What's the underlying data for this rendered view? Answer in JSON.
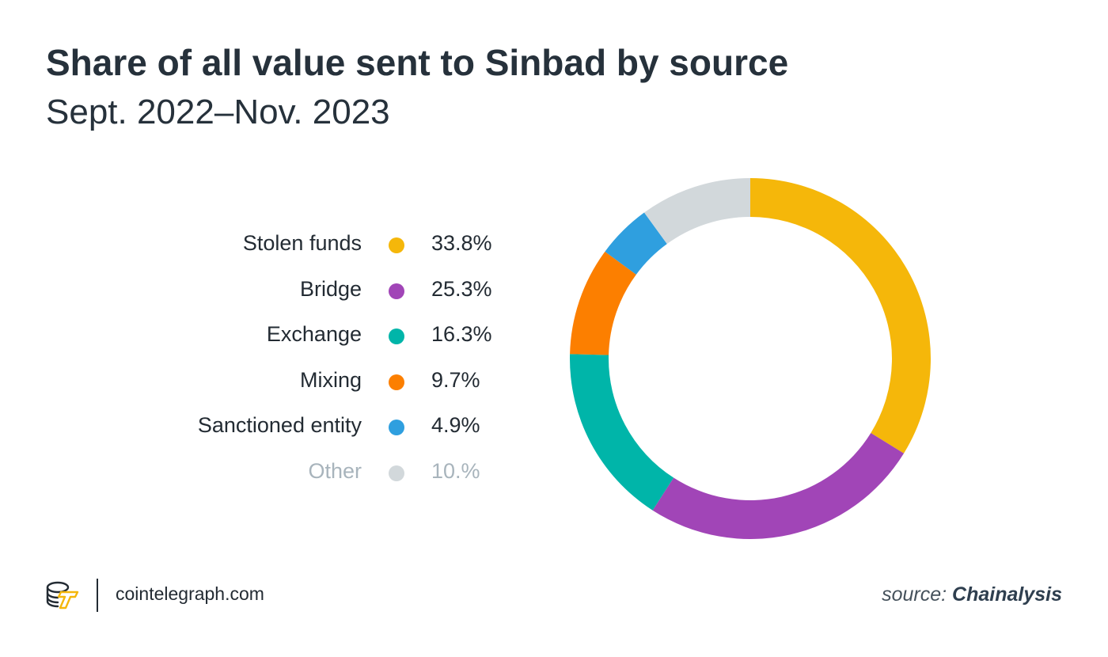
{
  "header": {
    "title": "Share of all value sent to Sinbad by source",
    "subtitle": "Sept. 2022–Nov. 2023"
  },
  "legend": [
    {
      "label": "Stolen funds",
      "value": "33.8%",
      "color": "#f5b70a"
    },
    {
      "label": "Bridge",
      "value": "25.3%",
      "color": "#a145b7"
    },
    {
      "label": "Exchange",
      "value": "16.3%",
      "color": "#00b5a9"
    },
    {
      "label": "Mixing",
      "value": "9.7%",
      "color": "#fc7f00"
    },
    {
      "label": "Sanctioned entity",
      "value": "4.9%",
      "color": "#2f9fdf"
    },
    {
      "label": "Other",
      "value": "10.%",
      "color": "#d2d8db",
      "muted": true
    }
  ],
  "footer": {
    "site": "cointelegraph.com",
    "source_prefix": "source: ",
    "source_name": "Chainalysis",
    "logo_icon": "cointelegraph-logo-icon",
    "logo_color": "#f5b70a"
  },
  "chart_data": {
    "type": "pie",
    "title": "Share of all value sent to Sinbad by source",
    "subtitle": "Sept. 2022–Nov. 2023",
    "categories": [
      "Stolen funds",
      "Bridge",
      "Exchange",
      "Mixing",
      "Sanctioned entity",
      "Other"
    ],
    "values": [
      33.8,
      25.3,
      16.3,
      9.7,
      4.9,
      10.0
    ],
    "colors": [
      "#f5b70a",
      "#a145b7",
      "#00b5a9",
      "#fc7f00",
      "#2f9fdf",
      "#d2d8db"
    ],
    "style": "donut",
    "start": "top",
    "direction": "clockwise",
    "legend_placement": "left"
  }
}
